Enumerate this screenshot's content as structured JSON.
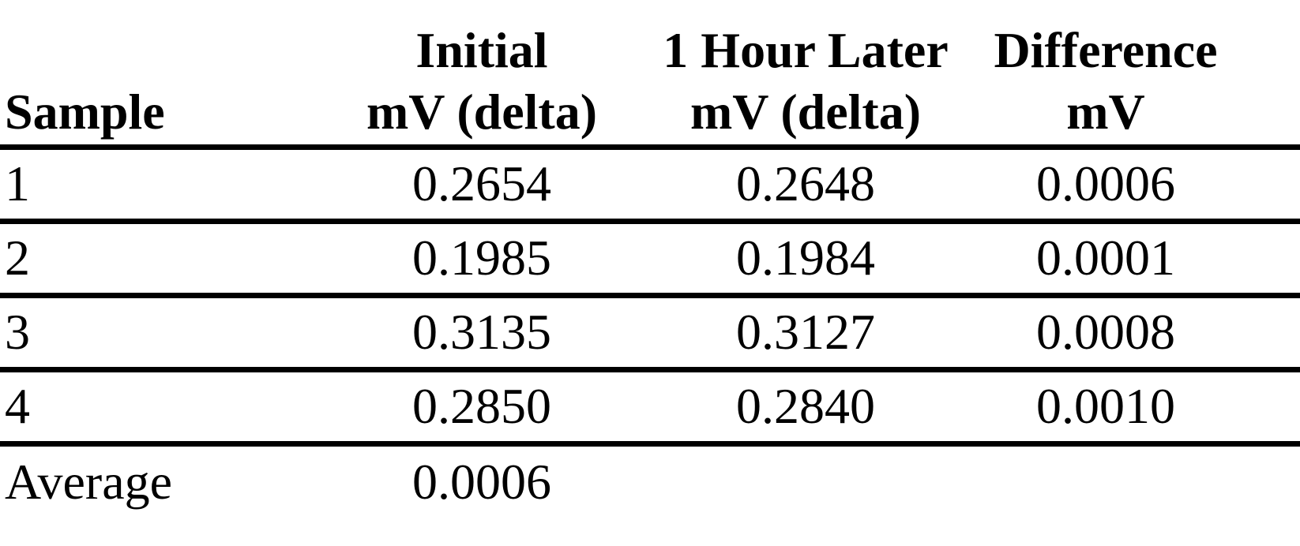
{
  "page": {
    "background_color": "#ffffff",
    "text_color": "#000000",
    "rule_color": "#000000"
  },
  "table": {
    "header": {
      "col1": {
        "line1": "",
        "line2": "Sample"
      },
      "col2": {
        "line1": "Initial",
        "line2": "mV (delta)"
      },
      "col3": {
        "line1": "1 Hour Later",
        "line2": "mV (delta)"
      },
      "col4": {
        "line1": "Difference",
        "line2": "mV"
      }
    },
    "rows": [
      {
        "sample": "1",
        "initial_mv": "0.2654",
        "hour_later_mv": "0.2648",
        "difference_mv": "0.0006"
      },
      {
        "sample": "2",
        "initial_mv": "0.1985",
        "hour_later_mv": "0.1984",
        "difference_mv": "0.0001"
      },
      {
        "sample": "3",
        "initial_mv": "0.3135",
        "hour_later_mv": "0.3127",
        "difference_mv": "0.0008"
      },
      {
        "sample": "4",
        "initial_mv": "0.2850",
        "hour_later_mv": "0.2840",
        "difference_mv": "0.0010"
      }
    ],
    "footer": {
      "label": "Average",
      "value": "0.0006"
    }
  }
}
